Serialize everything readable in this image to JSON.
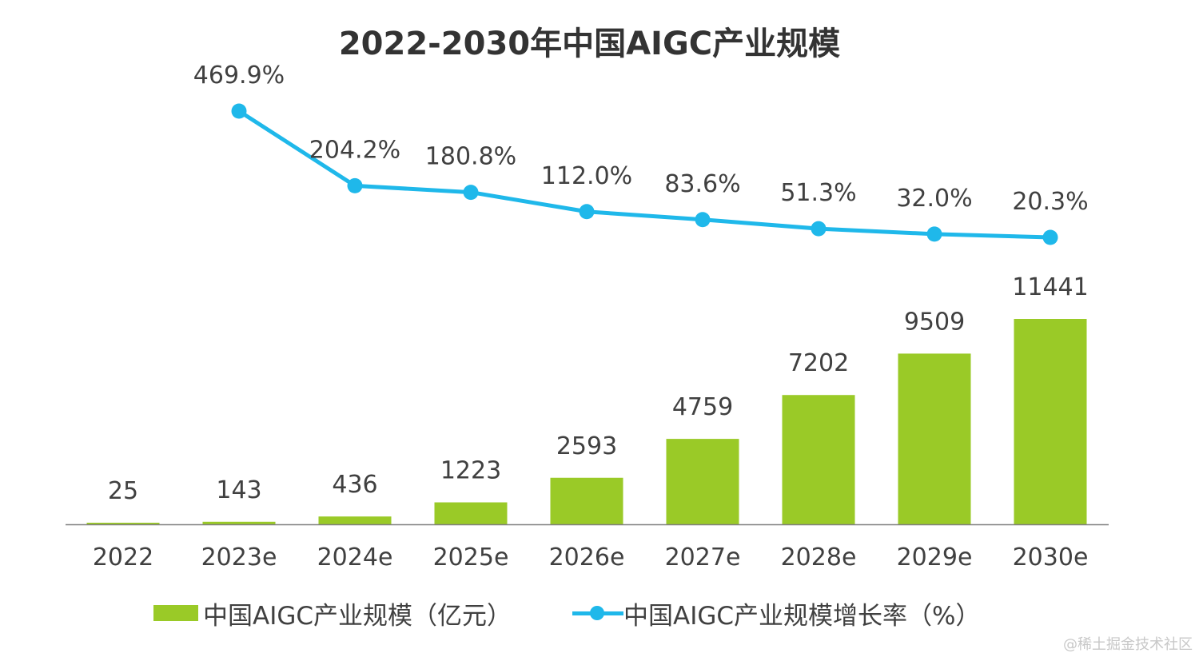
{
  "title": "2022-2030年中国AIGC产业规模",
  "watermark": "@稀土掘金技术社区",
  "colors": {
    "bar": "#9ACA27",
    "line": "#1FB8EA",
    "axis": "#7f7f7f",
    "text": "#404040"
  },
  "legend": {
    "bar_label": "中国AIGC产业规模（亿元）",
    "line_label": "中国AIGC产业规模增长率（%）"
  },
  "chart_data": {
    "type": "bar+line",
    "categories": [
      "2022",
      "2023e",
      "2024e",
      "2025e",
      "2026e",
      "2027e",
      "2028e",
      "2029e",
      "2030e"
    ],
    "series": [
      {
        "name": "中国AIGC产业规模（亿元）",
        "type": "bar",
        "values": [
          25,
          143,
          436,
          1223,
          2593,
          4759,
          7202,
          9509,
          11441
        ],
        "labels": [
          "25",
          "143",
          "436",
          "1223",
          "2593",
          "4759",
          "7202",
          "9509",
          "11441"
        ]
      },
      {
        "name": "中国AIGC产业规模增长率（%）",
        "type": "line",
        "values": [
          null,
          469.9,
          204.2,
          180.8,
          112.0,
          83.6,
          51.3,
          32.0,
          20.3
        ],
        "labels": [
          "",
          "469.9%",
          "204.2%",
          "180.8%",
          "112.0%",
          "83.6%",
          "51.3%",
          "32.0%",
          "20.3%"
        ]
      }
    ],
    "title": "2022-2030年中国AIGC产业规模",
    "xlabel": "",
    "ylabel": "",
    "grid": false,
    "legend_position": "bottom"
  }
}
